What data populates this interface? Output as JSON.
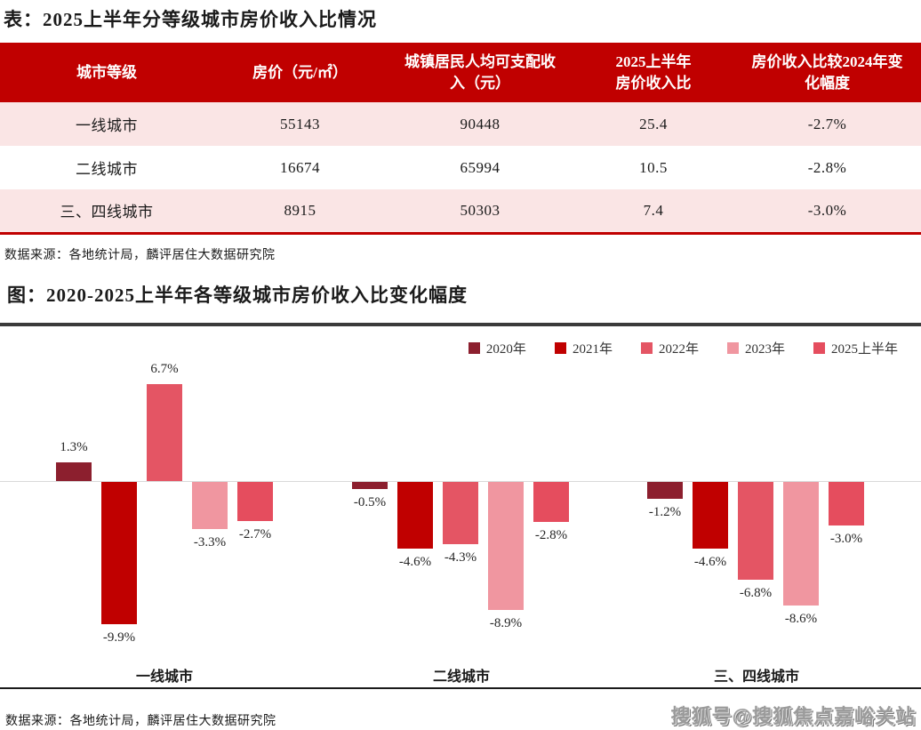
{
  "table_section": {
    "title": "表：2025上半年分等级城市房价收入比情况",
    "columns": [
      "城市等级",
      "房价（元/㎡）",
      "城镇居民人均可支配收入（元）",
      "2025上半年房价收入比",
      "房价收入比较2024年变化幅度"
    ],
    "rows": [
      [
        "一线城市",
        "55143",
        "90448",
        "25.4",
        "-2.7%"
      ],
      [
        "二线城市",
        "16674",
        "65994",
        "10.5",
        "-2.8%"
      ],
      [
        "三、四线城市",
        "8915",
        "50303",
        "7.4",
        "-3.0%"
      ]
    ],
    "source": "数据来源：各地统计局，麟评居住大数据研究院"
  },
  "chart_section": {
    "title": "图：2020-2025上半年各等级城市房价收入比变化幅度",
    "source": "数据来源：各地统计局，麟评居住大数据研究院"
  },
  "chart_data": {
    "type": "bar",
    "title": "图：2020-2025上半年各等级城市房价收入比变化幅度",
    "categories": [
      "一线城市",
      "二线城市",
      "三、四线城市"
    ],
    "series": [
      {
        "name": "2020年",
        "color": "#8C1F2E",
        "values": [
          1.3,
          -0.5,
          -1.2
        ]
      },
      {
        "name": "2021年",
        "color": "#C00000",
        "values": [
          -9.9,
          -4.6,
          -4.6
        ]
      },
      {
        "name": "2022年",
        "color": "#E45564",
        "values": [
          6.7,
          -4.3,
          -6.8
        ]
      },
      {
        "name": "2023年",
        "color": "#F096A0",
        "values": [
          -3.3,
          -8.9,
          -8.6
        ]
      },
      {
        "name": "2025上半年",
        "color": "#E54D5E",
        "values": [
          -2.7,
          -2.8,
          -3.0
        ]
      }
    ],
    "unit": "%",
    "ylim": [
      -10.5,
      7.5
    ],
    "legend_position": "top-right",
    "grid": false,
    "data_labels": true
  },
  "watermark": "搜狐号@搜狐焦点嘉峪关站",
  "colors": {
    "table_header_bg": "#C00000",
    "table_row_alt_bg": "#FAE5E5",
    "table_border_bottom": "#C00000",
    "divider_dark": "#3B3B3B",
    "zero_line": "#D9D9D9",
    "watermark_gray": "#9b9b9b"
  }
}
